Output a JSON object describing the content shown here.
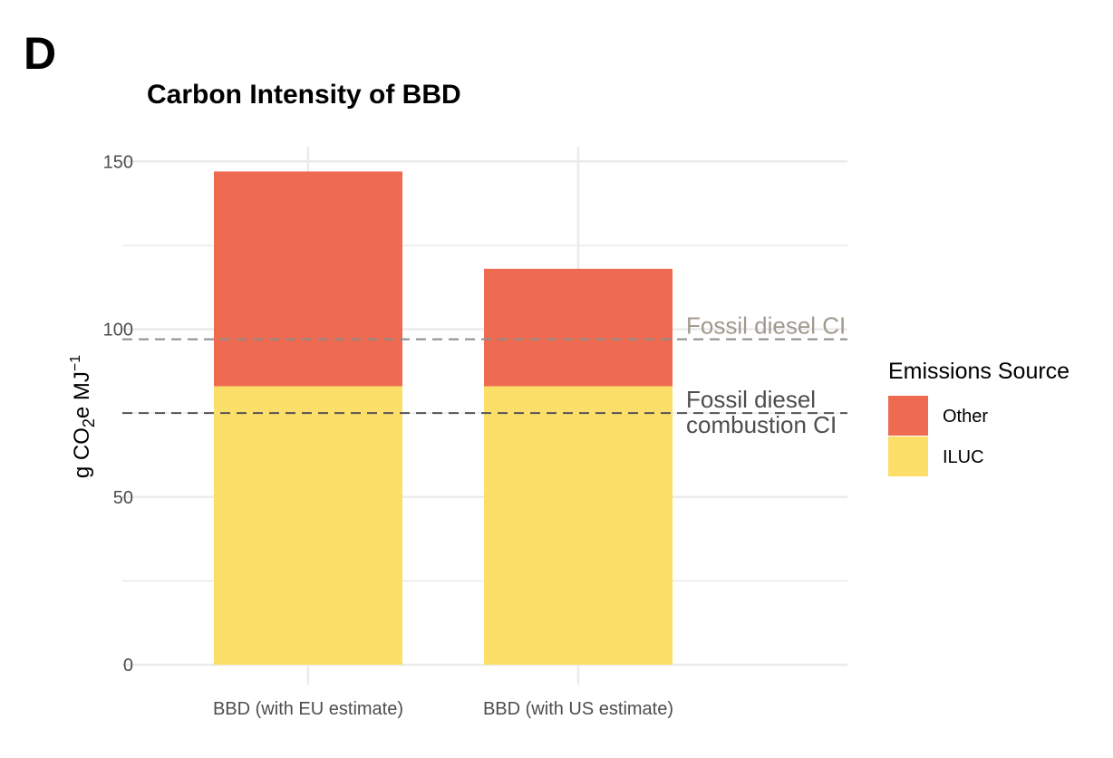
{
  "panel_label": "D",
  "colors": {
    "other": "#ee6b52",
    "iluc": "#fcdf69",
    "fossil_diesel_line": "#8c8c8c",
    "fossil_diesel_text": "#a09a8e",
    "combustion_line": "#555555",
    "combustion_text": "#4d4d4d",
    "grid": "#ebebeb"
  },
  "chart_data": {
    "type": "bar",
    "stacked": true,
    "title": "Carbon Intensity of BBD",
    "xlabel": "",
    "ylabel": {
      "prefix": "g CO",
      "sub": "2",
      "mid": "e MJ",
      "sup": "−1"
    },
    "ylim": [
      0,
      155
    ],
    "yticks": [
      0,
      50,
      100,
      150
    ],
    "minor_yticks": [
      25,
      75,
      125
    ],
    "categories": [
      "BBD (with EU estimate)",
      "BBD (with US estimate)"
    ],
    "series": [
      {
        "name": "ILUC",
        "color": "#fcdf69",
        "values": [
          83,
          83
        ]
      },
      {
        "name": "Other",
        "color": "#ee6b52",
        "values": [
          64,
          35
        ]
      }
    ],
    "reference_lines": [
      {
        "label": "Fossil diesel CI",
        "value": 97,
        "lines": [
          "Fossil diesel CI"
        ]
      },
      {
        "label": "Fossil diesel combustion CI",
        "value": 75,
        "lines": [
          "Fossil diesel",
          "combustion CI"
        ]
      }
    ],
    "legend": {
      "title": "Emissions Source",
      "position": "right",
      "entries": [
        {
          "label": "Other",
          "color": "#ee6b52"
        },
        {
          "label": "ILUC",
          "color": "#fcdf69"
        }
      ]
    },
    "grid": true
  }
}
